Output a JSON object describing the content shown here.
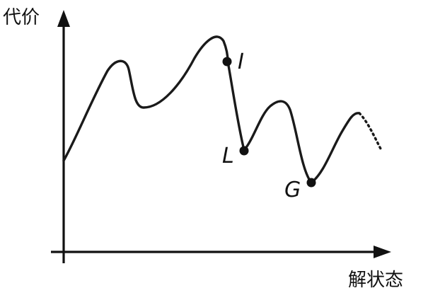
{
  "axes": {
    "y_label": "代价",
    "x_label": "解状态"
  },
  "points": {
    "I": "I",
    "L": "L",
    "G": "G"
  }
}
